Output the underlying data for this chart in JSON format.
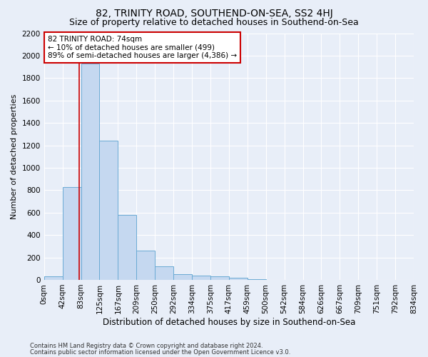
{
  "title": "82, TRINITY ROAD, SOUTHEND-ON-SEA, SS2 4HJ",
  "subtitle": "Size of property relative to detached houses in Southend-on-Sea",
  "xlabel": "Distribution of detached houses by size in Southend-on-Sea",
  "ylabel": "Number of detached properties",
  "footnote1": "Contains HM Land Registry data © Crown copyright and database right 2024.",
  "footnote2": "Contains public sector information licensed under the Open Government Licence v3.0.",
  "bin_labels": [
    "0sqm",
    "42sqm",
    "83sqm",
    "125sqm",
    "167sqm",
    "209sqm",
    "250sqm",
    "292sqm",
    "334sqm",
    "375sqm",
    "417sqm",
    "459sqm",
    "500sqm",
    "542sqm",
    "584sqm",
    "626sqm",
    "667sqm",
    "709sqm",
    "751sqm",
    "792sqm",
    "834sqm"
  ],
  "bar_heights": [
    30,
    830,
    1930,
    1240,
    580,
    260,
    120,
    50,
    40,
    30,
    20,
    5,
    2,
    1,
    1,
    0,
    0,
    0,
    0,
    0
  ],
  "bar_color": "#c5d8f0",
  "bar_edge_color": "#6aaad4",
  "vline_x": 1.9,
  "vline_color": "#cc0000",
  "annotation_text": "82 TRINITY ROAD: 74sqm\n← 10% of detached houses are smaller (499)\n89% of semi-detached houses are larger (4,386) →",
  "annotation_box_color": "white",
  "annotation_box_edge": "#cc0000",
  "ylim": [
    0,
    2200
  ],
  "yticks": [
    0,
    200,
    400,
    600,
    800,
    1000,
    1200,
    1400,
    1600,
    1800,
    2000,
    2200
  ],
  "background_color": "#e8eef8",
  "grid_color": "white",
  "title_fontsize": 10,
  "subtitle_fontsize": 9,
  "xlabel_fontsize": 8.5,
  "ylabel_fontsize": 8,
  "tick_fontsize": 7.5,
  "annotation_fontsize": 7.5,
  "footnote_fontsize": 6
}
